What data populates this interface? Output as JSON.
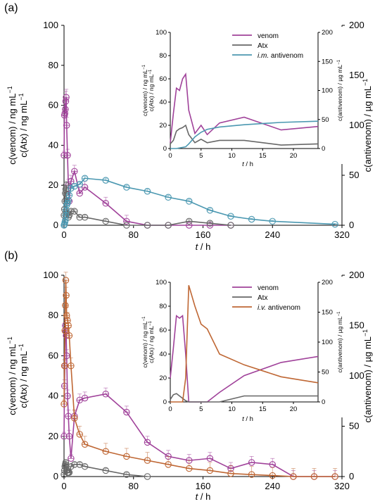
{
  "colors": {
    "venom": "#a0429a",
    "atx": "#676767",
    "im_antivenom": "#4b98b1",
    "iv_antivenom": "#bf6734"
  },
  "chart_data": [
    {
      "panel": "(a)",
      "type": "line",
      "x": [
        0,
        0.5,
        1,
        1.5,
        2,
        2.5,
        3,
        4,
        5,
        6,
        8,
        12,
        18,
        24,
        48,
        72,
        96,
        120,
        144,
        168,
        192,
        216,
        240,
        312
      ],
      "xlim": [
        0,
        320
      ],
      "xticks": [
        0,
        80,
        160,
        240,
        320
      ],
      "ylim_left": [
        0,
        100
      ],
      "yticks_left": [
        0,
        20,
        40,
        60,
        80,
        100
      ],
      "ylim_right": [
        0,
        200
      ],
      "yticks_right": [
        0,
        50,
        100,
        150,
        200
      ],
      "xlabel_italic": "t",
      "xlabel_unit": " / h",
      "ylabel_left_lines": [
        "c(venom) / ng mL",
        "c(Atx) / ng mL"
      ],
      "ylabel_right": "c(antivenom) / µg mL",
      "series": [
        {
          "name": "venom",
          "axis": "left",
          "color_key": "venom",
          "values": [
            35,
            55,
            56,
            58,
            62,
            64,
            50,
            35,
            20,
            12,
            22,
            27,
            16,
            19,
            11,
            2,
            0,
            0,
            0,
            0,
            0,
            null,
            null,
            null
          ],
          "err": [
            2,
            5,
            5,
            5,
            5,
            4,
            4,
            3,
            3,
            3,
            3,
            3,
            3,
            3,
            3,
            3,
            0,
            0,
            0,
            0,
            0,
            null,
            null,
            null
          ]
        },
        {
          "name": "Atx",
          "axis": "left",
          "color_key": "atx",
          "values": [
            5,
            8,
            12,
            16,
            18,
            20,
            12,
            6,
            4,
            5,
            7,
            7,
            4,
            4,
            2,
            0,
            0,
            0,
            2,
            1,
            0,
            null,
            null,
            null
          ],
          "err": [
            1,
            1,
            1,
            2,
            2,
            2,
            1,
            1,
            1,
            1,
            1,
            1,
            1,
            1,
            1,
            0,
            0,
            0,
            1,
            1,
            0,
            null,
            null,
            null
          ]
        },
        {
          "name": "i.m. antivenom",
          "axis": "right",
          "color_key": "im_antivenom",
          "values": [
            0,
            1,
            3,
            5,
            10,
            15,
            20,
            22,
            25,
            30,
            37,
            39,
            41,
            47,
            45,
            38,
            34,
            28,
            24,
            15,
            9,
            6,
            4,
            1
          ],
          "err": [
            0,
            1,
            1,
            1,
            1,
            2,
            2,
            2,
            2,
            2,
            2,
            2,
            2,
            2,
            2,
            2,
            2,
            2,
            2,
            2,
            1,
            1,
            1,
            1
          ]
        }
      ],
      "inset": {
        "x": [
          0,
          0.5,
          1,
          1.5,
          2,
          2.5,
          3,
          4,
          5,
          6,
          8,
          12,
          18,
          24
        ],
        "xlim": [
          0,
          24
        ],
        "xticks": [
          0,
          5,
          10,
          15,
          20
        ],
        "ylim_left": [
          0,
          100
        ],
        "yticks_left": [
          0,
          20,
          40,
          60,
          80,
          100
        ],
        "ylim_right": [
          0,
          200
        ],
        "yticks_right": [
          0,
          50,
          100,
          150,
          200
        ],
        "xlabel_italic": "t",
        "xlabel_unit": " / h",
        "ylabel_left_lines": [
          "c(venom) / ng mL",
          "c(Atx) / ng mL"
        ],
        "ylabel_right": "c(antivenom) / µg mL",
        "series": [
          {
            "name": "venom",
            "axis": "left",
            "color_key": "venom",
            "values": [
              5,
              30,
              52,
              50,
              60,
              64,
              33,
              13,
              20,
              12,
              22,
              27,
              16,
              19
            ]
          },
          {
            "name": "Atx",
            "axis": "left",
            "color_key": "atx",
            "values": [
              4,
              7,
              15,
              17,
              18,
              20,
              12,
              5,
              8,
              5,
              7,
              7,
              3,
              4
            ]
          },
          {
            "name": "i.m. antivenom",
            "axis": "right",
            "color_key": "im_antivenom",
            "values": [
              0,
              0,
              0,
              1,
              2,
              3,
              8,
              20,
              28,
              33,
              37,
              41,
              45,
              47
            ]
          }
        ],
        "legend": [
          {
            "label": "venom",
            "color_key": "venom"
          },
          {
            "label": "Atx",
            "color_key": "atx"
          },
          {
            "label": "i.m. antivenom",
            "color_key": "im_antivenom",
            "italic_prefix": "i.m.",
            "rest": " antivenom"
          }
        ]
      }
    },
    {
      "panel": "(b)",
      "type": "line",
      "x": [
        0,
        0.5,
        1,
        1.5,
        2,
        2.5,
        3,
        4,
        5,
        6,
        8,
        12,
        18,
        24,
        48,
        72,
        96,
        120,
        144,
        168,
        192,
        216,
        240,
        264,
        288,
        312
      ],
      "xlim": [
        0,
        320
      ],
      "xticks": [
        0,
        80,
        160,
        240,
        320
      ],
      "ylim_left": [
        0,
        100
      ],
      "yticks_left": [
        0,
        20,
        40,
        60,
        80,
        100
      ],
      "ylim_right": [
        0,
        200
      ],
      "yticks_right": [
        0,
        50,
        100,
        150,
        200
      ],
      "xlabel_italic": "t",
      "xlabel_unit": " / h",
      "ylabel_left_lines": [
        "c(venom) / ng mL",
        "c(Atx) / ng mL"
      ],
      "ylabel_right": "c(antivenom) / µg mL",
      "series": [
        {
          "name": "venom",
          "axis": "left",
          "color_key": "venom",
          "values": [
            20,
            45,
            55,
            75,
            72,
            70,
            60,
            40,
            30,
            20,
            9,
            30,
            38,
            39,
            41,
            32,
            17,
            10,
            8,
            9,
            4,
            7,
            6,
            0,
            0,
            0
          ],
          "err": [
            2,
            3,
            3,
            3,
            3,
            3,
            3,
            3,
            3,
            3,
            2,
            3,
            3,
            3,
            3,
            3,
            3,
            3,
            3,
            3,
            3,
            3,
            3,
            3,
            3,
            3
          ]
        },
        {
          "name": "Atx",
          "axis": "left",
          "color_key": "atx",
          "values": [
            1,
            3,
            5,
            6,
            7,
            5,
            3,
            2,
            2,
            2,
            5,
            6,
            6,
            5,
            3,
            1,
            0,
            null,
            null,
            null,
            null,
            null,
            null,
            null,
            null,
            null
          ],
          "err": [
            1,
            1,
            1,
            1,
            1,
            1,
            1,
            1,
            1,
            1,
            1,
            1,
            1,
            1,
            1,
            1,
            0,
            null,
            null,
            null,
            null,
            null,
            null,
            null,
            null,
            null
          ]
        },
        {
          "name": "i.v. antivenom",
          "axis": "right",
          "color_key": "iv_antivenom",
          "values": [
            72,
            110,
            145,
            170,
            195,
            180,
            160,
            155,
            150,
            140,
            110,
            58,
            42,
            32,
            25,
            20,
            16,
            12,
            8,
            6,
            3,
            2,
            1,
            0,
            0,
            0
          ],
          "err": [
            4,
            6,
            8,
            8,
            8,
            8,
            8,
            8,
            8,
            8,
            8,
            8,
            8,
            8,
            8,
            8,
            8,
            8,
            8,
            8,
            8,
            8,
            8,
            8,
            8,
            8
          ]
        }
      ],
      "inset": {
        "x": [
          0,
          0.5,
          1,
          1.5,
          2,
          2.5,
          3,
          4,
          5,
          6,
          8,
          12,
          18,
          24
        ],
        "xlim": [
          0,
          24
        ],
        "xticks": [
          0,
          5,
          10,
          15,
          20
        ],
        "ylim_left": [
          0,
          100
        ],
        "yticks_left": [
          0,
          20,
          40,
          60,
          80,
          100
        ],
        "ylim_right": [
          0,
          200
        ],
        "yticks_right": [
          0,
          50,
          100,
          150,
          200
        ],
        "xlabel_italic": "t",
        "xlabel_unit": " / h",
        "ylabel_left_lines": [
          "c(venom) / ng mL",
          "c(Atx) / ng mL"
        ],
        "ylabel_right": "c(antivenom) / µg mL",
        "series": [
          {
            "name": "venom",
            "axis": "left",
            "color_key": "venom",
            "values": [
              20,
              45,
              72,
              70,
              72,
              40,
              0,
              0,
              0,
              0,
              8,
              22,
              33,
              38
            ]
          },
          {
            "name": "Atx",
            "axis": "left",
            "color_key": "atx",
            "values": [
              2,
              6,
              7,
              5,
              3,
              1,
              0,
              0,
              0,
              0,
              0,
              5,
              5,
              5
            ]
          },
          {
            "name": "i.v. antivenom",
            "axis": "right",
            "color_key": "iv_antivenom",
            "values": [
              0,
              0,
              0,
              0,
              0,
              40,
              195,
              160,
              130,
              122,
              80,
              62,
              42,
              32
            ]
          }
        ],
        "legend": [
          {
            "label": "venom",
            "color_key": "venom"
          },
          {
            "label": "Atx",
            "color_key": "atx"
          },
          {
            "label": "i.v. antivenom",
            "color_key": "iv_antivenom",
            "italic_prefix": "i.v.",
            "rest": " antivenom"
          }
        ]
      }
    }
  ]
}
